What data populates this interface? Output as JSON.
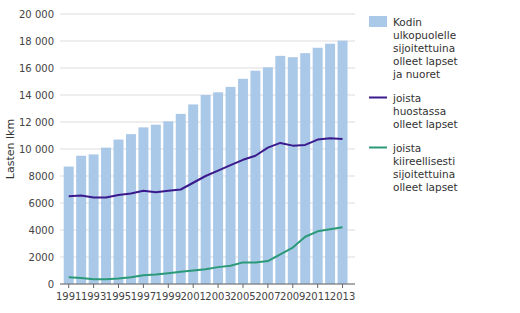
{
  "chart_data": {
    "type": "bar",
    "y_label": "Lasten lkm",
    "x": [
      1991,
      1992,
      1993,
      1994,
      1995,
      1996,
      1997,
      1998,
      1999,
      2000,
      2001,
      2002,
      2003,
      2004,
      2005,
      2006,
      2007,
      2008,
      2009,
      2010,
      2011,
      2012,
      2013
    ],
    "series": [
      {
        "name": "Kodin\nulkopuolelle\nsijoitettuina\nolleet lapset\nja nuoret",
        "type": "bar",
        "color": "#aac8e8",
        "values": [
          8700,
          9500,
          9600,
          10100,
          10700,
          11100,
          11600,
          11800,
          12050,
          12600,
          13300,
          14000,
          14200,
          14600,
          15200,
          15800,
          16050,
          16900,
          16800,
          17100,
          17500,
          17800,
          18022
        ]
      },
      {
        "name": "joista\nhuostassa\nolleet lapset",
        "type": "line",
        "color": "#3a1a8c",
        "values": [
          6500,
          6550,
          6400,
          6400,
          6600,
          6700,
          6900,
          6800,
          6900,
          7000,
          7500,
          8000,
          8400,
          8800,
          9200,
          9500,
          10100,
          10450,
          10250,
          10300,
          10700,
          10800,
          10735
        ]
      },
      {
        "name": "joista\nkiireellisesti\nsijoitettuina\nolleet lapset",
        "type": "line",
        "color": "#2a9a78",
        "values": [
          500,
          450,
          350,
          350,
          400,
          500,
          650,
          700,
          800,
          900,
          1000,
          1100,
          1250,
          1350,
          1600,
          1600,
          1700,
          2200,
          2700,
          3500,
          3900,
          4050,
          4200
        ]
      }
    ],
    "xlim": [
      1990.3,
      2014
    ],
    "xticks": [
      1991,
      1993,
      1995,
      1997,
      1999,
      2001,
      2003,
      2005,
      2007,
      2009,
      2011,
      2013
    ],
    "ylim": [
      0,
      20000
    ],
    "yticks": [
      0,
      2000,
      4000,
      6000,
      8000,
      {
        "value": 10000,
        "label": "10 000"
      },
      {
        "value": 12000,
        "label": "12 000"
      },
      {
        "value": 14000,
        "label": "14 000"
      },
      {
        "value": 16000,
        "label": "16 000"
      },
      {
        "value": 18000,
        "label": "18 000"
      },
      {
        "value": 20000,
        "label": "20 000"
      }
    ],
    "grid": true,
    "legend": "right"
  }
}
